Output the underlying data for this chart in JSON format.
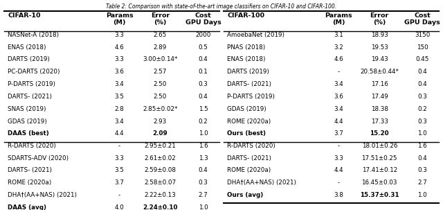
{
  "left_table": {
    "header_col": "CIFAR-10",
    "section1": [
      [
        "NASNet-A (2018)",
        "3.3",
        "2.65",
        "2000",
        false,
        false
      ],
      [
        "ENAS (2018)",
        "4.6",
        "2.89",
        "0.5",
        false,
        false
      ],
      [
        "DARTS (2019)",
        "3.3",
        "3.00±0.14*",
        "0.4",
        false,
        false
      ],
      [
        "PC-DARTS (2020)",
        "3.6",
        "2.57",
        "0.1",
        false,
        false
      ],
      [
        "P-DARTS (2019)",
        "3.4",
        "2.50",
        "0.3",
        false,
        false
      ],
      [
        "DARTS- (2021)",
        "3.5",
        "2.50",
        "0.4",
        false,
        false
      ],
      [
        "SNAS (2019)",
        "2.8",
        "2.85±0.02*",
        "1.5",
        false,
        false
      ],
      [
        "GDAS (2019)",
        "3.4",
        "2.93",
        "0.2",
        false,
        false
      ],
      [
        "DAAS (best)",
        "4.4",
        "2.09",
        "1.0",
        true,
        true
      ]
    ],
    "section2": [
      [
        "R-DARTS (2020)",
        "-",
        "2.95±0.21",
        "1.6",
        false,
        false
      ],
      [
        "SDARTS-ADV (2020)",
        "3.3",
        "2.61±0.02",
        "1.3",
        false,
        false
      ],
      [
        "DARTS- (2021)",
        "3.5",
        "2.59±0.08",
        "0.4",
        false,
        false
      ],
      [
        "ROME (2020a)",
        "3.7",
        "2.58±0.07",
        "0.3",
        false,
        false
      ],
      [
        "DHA†(AA+NAS) (2021)",
        "-",
        "2.22±0.13",
        "2.7",
        false,
        false
      ],
      [
        "DAAS (avg)",
        "4.0",
        "2.24±0.10",
        "1.0",
        true,
        true
      ]
    ]
  },
  "right_table": {
    "header_col": "CIFAR-100",
    "section1": [
      [
        "AmoebaNet (2019)",
        "3.1",
        "18.93",
        "3150",
        false,
        false
      ],
      [
        "PNAS (2018)",
        "3.2",
        "19.53",
        "150",
        false,
        false
      ],
      [
        "ENAS (2018)",
        "4.6",
        "19.43",
        "0.45",
        false,
        false
      ],
      [
        "DARTS (2019)",
        "-",
        "20.58±0.44*",
        "0.4",
        false,
        false
      ],
      [
        "DARTS- (2021)",
        "3.4",
        "17.16",
        "0.4",
        false,
        false
      ],
      [
        "P-DARTS (2019)",
        "3.6",
        "17.49",
        "0.3",
        false,
        false
      ],
      [
        "GDAS (2019)",
        "3.4",
        "18.38",
        "0.2",
        false,
        false
      ],
      [
        "ROME (2020a)",
        "4.4",
        "17.33",
        "0.3",
        false,
        false
      ],
      [
        "Ours (best)",
        "3.7",
        "15.20",
        "1.0",
        true,
        true
      ]
    ],
    "section2": [
      [
        "R-DARTS (2020)",
        "-",
        "18.01±0.26",
        "1.6",
        false,
        false
      ],
      [
        "DARTS- (2021)",
        "3.3",
        "17.51±0.25",
        "0.4",
        false,
        false
      ],
      [
        "ROME (2020a)",
        "4.4",
        "17.41±0.12",
        "0.3",
        false,
        false
      ],
      [
        "DHA†(AA+NAS) (2021)",
        "-",
        "16.45±0.03",
        "2.7",
        false,
        false
      ],
      [
        "Ours (avg)",
        "3.8",
        "15.37±0.31",
        "1.0",
        true,
        true
      ]
    ]
  }
}
